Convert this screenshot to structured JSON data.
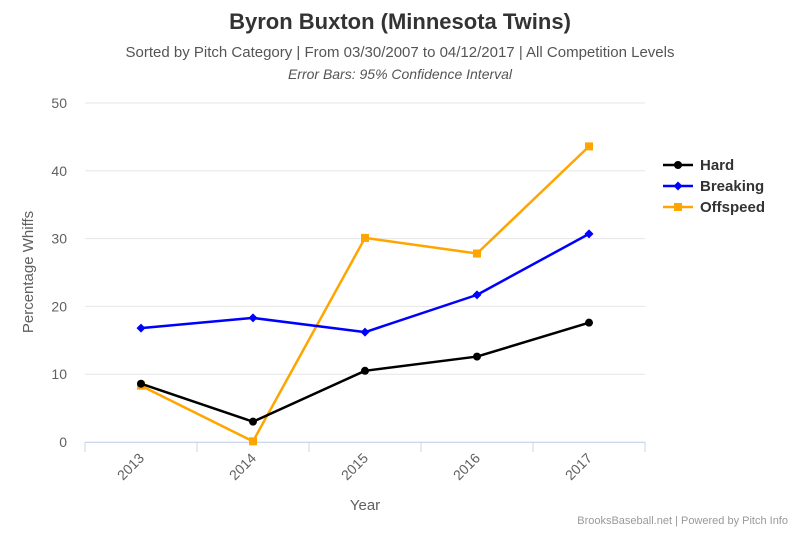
{
  "chart_data": {
    "type": "line",
    "title": "Byron Buxton (Minnesota Twins)",
    "subtitle": "Sorted by Pitch Category | From 03/30/2007 to 04/12/2017 | All Competition Levels",
    "note": "Error Bars: 95% Confidence Interval",
    "xlabel": "Year",
    "ylabel": "Percentage Whiffs",
    "categories": [
      "2013",
      "2014",
      "2015",
      "2016",
      "2017"
    ],
    "ylim": [
      0,
      50
    ],
    "yticks": [
      0,
      10,
      20,
      30,
      40,
      50
    ],
    "grid": "horizontal",
    "legend_position": "right",
    "series": [
      {
        "name": "Hard",
        "color": "#000000",
        "marker": "circle",
        "values": [
          8.6,
          3.0,
          10.5,
          12.6,
          17.6
        ]
      },
      {
        "name": "Breaking",
        "color": "#0000ff",
        "marker": "diamond",
        "values": [
          16.8,
          18.3,
          16.2,
          21.7,
          30.7
        ]
      },
      {
        "name": "Offspeed",
        "color": "#ffa500",
        "marker": "square",
        "values": [
          8.3,
          0.1,
          30.1,
          27.8,
          43.6
        ]
      }
    ]
  },
  "credits": "BrooksBaseball.net | Powered by Pitch Info"
}
